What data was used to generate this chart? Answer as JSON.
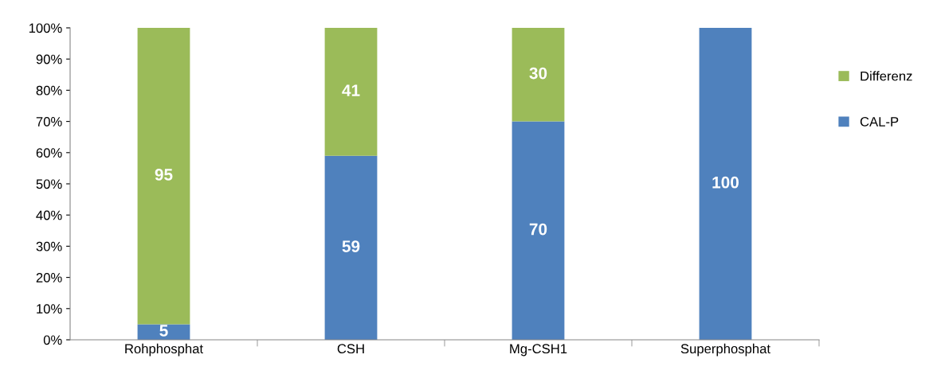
{
  "chart_data": {
    "type": "bar",
    "stacked": true,
    "categories": [
      "Rohphosphat",
      "CSH",
      "Mg-CSH1",
      "Superphosphat"
    ],
    "series": [
      {
        "name": "CAL-P",
        "color": "#4f81bd",
        "values": [
          5,
          59,
          70,
          100
        ],
        "value_labels": [
          "5",
          "59",
          "70",
          "100"
        ]
      },
      {
        "name": "Differenz",
        "color": "#9bbb59",
        "values": [
          95,
          41,
          30,
          0
        ],
        "value_labels": [
          "95",
          "41",
          "30",
          null
        ]
      }
    ],
    "ylim": [
      0,
      100
    ],
    "yticks": [
      {
        "value": 0,
        "label": "0%"
      },
      {
        "value": 10,
        "label": "10%"
      },
      {
        "value": 20,
        "label": "20%"
      },
      {
        "value": 30,
        "label": "30%"
      },
      {
        "value": 40,
        "label": "40%"
      },
      {
        "value": 50,
        "label": "50%"
      },
      {
        "value": 60,
        "label": "60%"
      },
      {
        "value": 70,
        "label": "70%"
      },
      {
        "value": 80,
        "label": "80%"
      },
      {
        "value": 90,
        "label": "90%"
      },
      {
        "value": 100,
        "label": "100%"
      }
    ],
    "grid": false,
    "legend": "right"
  }
}
